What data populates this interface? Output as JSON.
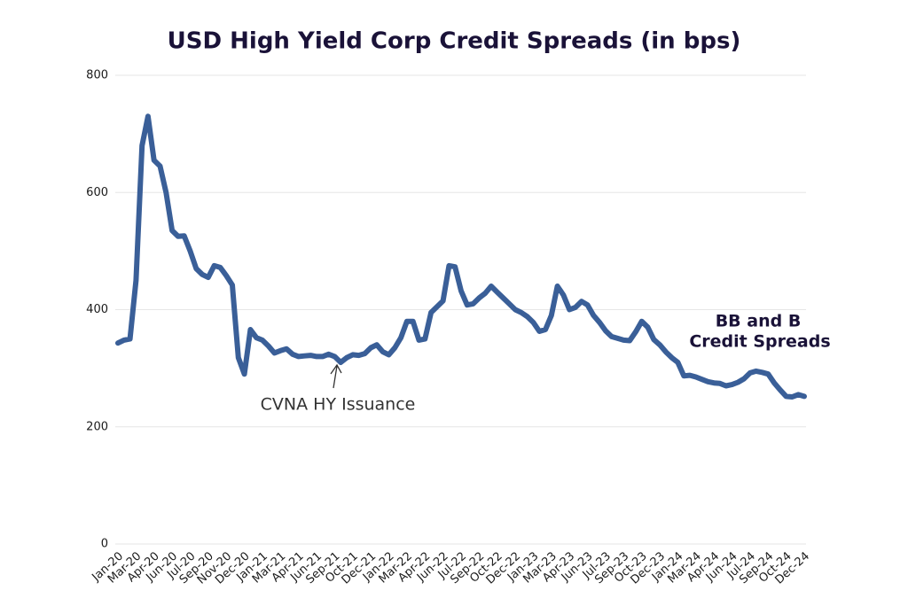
{
  "chart_data": {
    "type": "line",
    "title": "USD High Yield Corp Credit Spreads (in bps)",
    "categories": [
      "Jan-20",
      null,
      null,
      "Mar-20",
      null,
      null,
      "Apr-20",
      null,
      null,
      "Jun-20",
      null,
      null,
      "Jul-20",
      null,
      null,
      "Sep-20",
      null,
      null,
      "Nov-20",
      null,
      null,
      "Dec-20",
      null,
      null,
      "Jan-21",
      null,
      null,
      "Mar-21",
      null,
      null,
      "Apr-21",
      null,
      null,
      "Jun-21",
      null,
      null,
      "Sep-21",
      null,
      null,
      "Oct-21",
      null,
      null,
      "Dec-21",
      null,
      null,
      "Jan-22",
      null,
      null,
      "Mar-22",
      null,
      null,
      "Apr-22",
      null,
      null,
      "Jun-22",
      null,
      null,
      "Jul-22",
      null,
      null,
      "Sep-22",
      null,
      null,
      "Oct-22",
      null,
      null,
      "Dec-22",
      null,
      null,
      "Jan-23",
      null,
      null,
      "Mar-23",
      null,
      null,
      "Apr-23",
      null,
      null,
      "Jun-23",
      null,
      null,
      "Jul-23",
      null,
      null,
      "Sep-23",
      null,
      null,
      "Oct-23",
      null,
      null,
      "Dec-23",
      null,
      null,
      "Jan-24",
      null,
      null,
      "Mar-24",
      null,
      null,
      "Apr-24",
      null,
      null,
      "Jun-24",
      null,
      null,
      "Jul-24",
      null,
      null,
      "Sep-24",
      null,
      null,
      "Oct-24",
      null,
      null,
      "Dec-24"
    ],
    "series": [
      {
        "name": "BB and B Credit Spreads",
        "color": "#3a5f98",
        "values": [
          343,
          348,
          350,
          450,
          680,
          730,
          655,
          645,
          600,
          535,
          525,
          526,
          500,
          470,
          460,
          455,
          475,
          472,
          458,
          442,
          318,
          290,
          366,
          352,
          348,
          338,
          326,
          330,
          333,
          324,
          320,
          321,
          322,
          320,
          320,
          324,
          320,
          310,
          318,
          323,
          322,
          325,
          335,
          340,
          328,
          323,
          335,
          352,
          380,
          380,
          348,
          350,
          395,
          405,
          415,
          475,
          473,
          432,
          408,
          410,
          420,
          428,
          440,
          430,
          420,
          410,
          400,
          395,
          388,
          378,
          363,
          366,
          390,
          440,
          425,
          400,
          404,
          414,
          408,
          390,
          378,
          364,
          354,
          351,
          348,
          347,
          362,
          380,
          370,
          349,
          340,
          328,
          318,
          310,
          287,
          288,
          285,
          281,
          277,
          275,
          274,
          270,
          272,
          276,
          282,
          292,
          295,
          293,
          290,
          275,
          263,
          252,
          251,
          255,
          252
        ]
      }
    ],
    "annotations": [
      "CVNA HY Issuance",
      "BB and B",
      "Credit Spreads"
    ],
    "ylim": [
      0,
      800
    ],
    "yticks": [
      0,
      200,
      400,
      600,
      800
    ],
    "grid": true
  }
}
